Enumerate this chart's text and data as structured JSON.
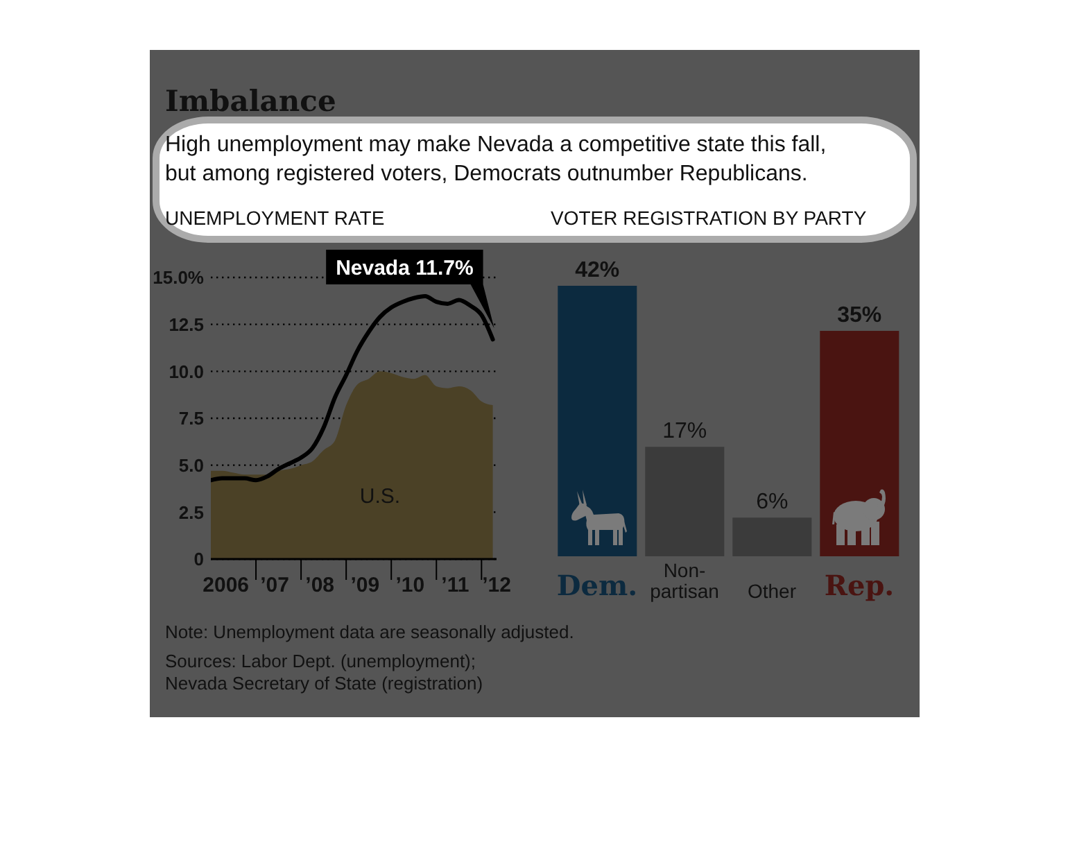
{
  "chart_data": [
    {
      "type": "other",
      "title": "Imbalance",
      "subtitle": "High unemployment may make Nevada a competitive state this fall, but among registered voters, Democrats outnumber Republicans."
    },
    {
      "type": "line",
      "title": "UNEMPLOYMENT RATE",
      "x": [
        "2006-01",
        "2006-04",
        "2006-07",
        "2006-10",
        "2007-01",
        "2007-04",
        "2007-07",
        "2007-10",
        "2008-01",
        "2008-04",
        "2008-07",
        "2008-10",
        "2009-01",
        "2009-04",
        "2009-07",
        "2009-10",
        "2010-01",
        "2010-04",
        "2010-07",
        "2010-10",
        "2011-01",
        "2011-04",
        "2011-07",
        "2011-10",
        "2012-01",
        "2012-04"
      ],
      "series": [
        {
          "name": "U.S.",
          "type": "area",
          "color": "#4b4126",
          "values": [
            4.7,
            4.7,
            4.6,
            4.5,
            4.5,
            4.5,
            4.7,
            4.8,
            5.0,
            5.2,
            5.8,
            6.3,
            8.2,
            9.3,
            9.6,
            10.0,
            9.9,
            9.7,
            9.6,
            9.8,
            9.2,
            9.1,
            9.2,
            9.0,
            8.4,
            8.2
          ]
        },
        {
          "name": "Nevada",
          "type": "line",
          "color": "#000000",
          "values": [
            4.2,
            4.3,
            4.3,
            4.3,
            4.2,
            4.4,
            4.8,
            5.1,
            5.4,
            5.9,
            7.0,
            8.6,
            9.8,
            11.1,
            12.1,
            12.9,
            13.4,
            13.7,
            13.9,
            14.0,
            13.7,
            13.6,
            13.8,
            13.5,
            13.0,
            11.7
          ],
          "value_labels": [
            null,
            null,
            null,
            null,
            null,
            null,
            null,
            null,
            null,
            null,
            null,
            null,
            null,
            null,
            null,
            null,
            null,
            null,
            null,
            null,
            null,
            null,
            null,
            null,
            null,
            "11.7%"
          ]
        }
      ],
      "xlim": [
        "2006-01",
        "2012-05"
      ],
      "ylim": [
        0,
        15
      ],
      "xticks": [
        {
          "value": "2006-05",
          "label": "2006"
        },
        {
          "value": "2007-01",
          "label": null
        },
        {
          "value": "2007-06",
          "label": "’07"
        },
        {
          "value": "2008-01",
          "label": null
        },
        {
          "value": "2008-06",
          "label": "’08"
        },
        {
          "value": "2009-01",
          "label": null
        },
        {
          "value": "2009-06",
          "label": "’09"
        },
        {
          "value": "2010-01",
          "label": null
        },
        {
          "value": "2010-06",
          "label": "’10"
        },
        {
          "value": "2011-01",
          "label": null
        },
        {
          "value": "2011-06",
          "label": "’11"
        },
        {
          "value": "2012-01",
          "label": null
        },
        {
          "value": "2012-05",
          "label": "’12"
        }
      ],
      "yticks": [
        0,
        2.5,
        {
          "value": 5,
          "label": "5.0"
        },
        7.5,
        {
          "value": 10,
          "label": "10.0"
        },
        12.5,
        {
          "value": 15,
          "label": "15.0%"
        }
      ],
      "grid": "y",
      "marker": "none"
    },
    {
      "type": "bar",
      "title": "VOTER REGISTRATION BY PARTY",
      "categories": [
        "Dem.",
        "Non-partisan",
        "Other",
        "Rep."
      ],
      "values": [
        42,
        17,
        6,
        35
      ],
      "colors": [
        "#0c2a3f",
        "#3b3b3b",
        "#3b3b3b",
        "#4a1411"
      ],
      "value_labels": [
        "42%",
        "17%",
        "6%",
        "35%"
      ],
      "tick_labels": "x"
    },
    {
      "type": "other",
      "annotations": [
        "Note: Unemployment data are seasonally adjusted.",
        "Sources: Labor Dept. (unemployment); Nevada Secretary of State (registration)"
      ]
    }
  ]
}
